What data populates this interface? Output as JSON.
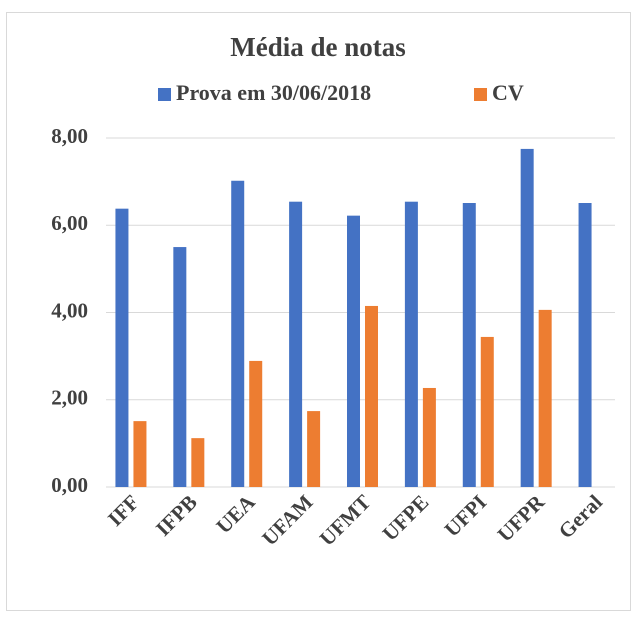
{
  "chart_data": {
    "type": "bar",
    "title": "Média de notas",
    "categories": [
      "IFF",
      "IFPB",
      "UEA",
      "UFAM",
      "UFMT",
      "UFPE",
      "UFPI",
      "UFPR",
      "Geral"
    ],
    "series": [
      {
        "name": "Prova em 30/06/2018",
        "color": "#4472c4",
        "values": [
          6.38,
          5.5,
          7.02,
          6.54,
          6.22,
          6.54,
          6.51,
          7.75,
          6.51
        ]
      },
      {
        "name": "CV",
        "color": "#ed7d31",
        "values": [
          1.51,
          1.12,
          2.89,
          1.74,
          4.15,
          2.27,
          3.44,
          4.06,
          null
        ]
      }
    ],
    "ylim": [
      0,
      8
    ],
    "yticks": [
      {
        "value": 0,
        "label": "0,00"
      },
      {
        "value": 2,
        "label": "2,00"
      },
      {
        "value": 4,
        "label": "4,00"
      },
      {
        "value": 6,
        "label": "6,00"
      },
      {
        "value": 8,
        "label": "8,00"
      }
    ],
    "grid": true,
    "legend": "top"
  }
}
